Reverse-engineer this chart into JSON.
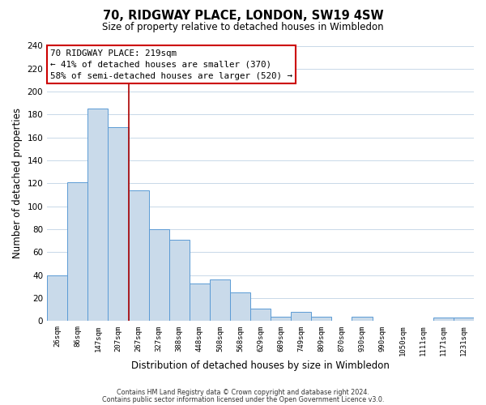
{
  "title": "70, RIDGWAY PLACE, LONDON, SW19 4SW",
  "subtitle": "Size of property relative to detached houses in Wimbledon",
  "xlabel": "Distribution of detached houses by size in Wimbledon",
  "ylabel": "Number of detached properties",
  "footer_line1": "Contains HM Land Registry data © Crown copyright and database right 2024.",
  "footer_line2": "Contains public sector information licensed under the Open Government Licence v3.0.",
  "bar_labels": [
    "26sqm",
    "86sqm",
    "147sqm",
    "207sqm",
    "267sqm",
    "327sqm",
    "388sqm",
    "448sqm",
    "508sqm",
    "568sqm",
    "629sqm",
    "689sqm",
    "749sqm",
    "809sqm",
    "870sqm",
    "930sqm",
    "990sqm",
    "1050sqm",
    "1111sqm",
    "1171sqm",
    "1231sqm"
  ],
  "bar_values": [
    40,
    121,
    185,
    169,
    114,
    80,
    71,
    33,
    36,
    25,
    11,
    4,
    8,
    4,
    0,
    4,
    0,
    0,
    0,
    3,
    3
  ],
  "bar_color": "#c9daea",
  "bar_edge_color": "#5b9bd5",
  "property_line_x": 4,
  "annotation_title": "70 RIDGWAY PLACE: 219sqm",
  "annotation_line1": "← 41% of detached houses are smaller (370)",
  "annotation_line2": "58% of semi-detached houses are larger (520) →",
  "annotation_box_color": "#ffffff",
  "annotation_box_edge_color": "#cc0000",
  "property_line_color": "#aa0000",
  "ylim": [
    0,
    240
  ],
  "yticks": [
    0,
    20,
    40,
    60,
    80,
    100,
    120,
    140,
    160,
    180,
    200,
    220,
    240
  ],
  "background_color": "#ffffff",
  "grid_color": "#c8d8e8"
}
